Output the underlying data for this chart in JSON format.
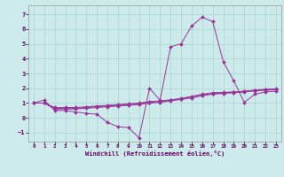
{
  "background_color": "#cceaea",
  "grid_color": "#aad4d4",
  "line_color": "#993399",
  "marker_color": "#993399",
  "xlabel": "Windchill (Refroidissement éolien,°C)",
  "xlim": [
    -0.5,
    23.5
  ],
  "ylim": [
    -1.6,
    7.6
  ],
  "yticks": [
    -1,
    0,
    1,
    2,
    3,
    4,
    5,
    6,
    7
  ],
  "xticks": [
    0,
    1,
    2,
    3,
    4,
    5,
    6,
    7,
    8,
    9,
    10,
    11,
    12,
    13,
    14,
    15,
    16,
    17,
    18,
    19,
    20,
    21,
    22,
    23
  ],
  "series1_x": [
    0,
    1,
    2,
    3,
    4,
    5,
    6,
    7,
    8,
    9,
    10,
    11,
    12,
    13,
    14,
    15,
    16,
    17,
    18,
    19,
    20,
    21,
    22,
    23
  ],
  "series1_y": [
    1.0,
    1.2,
    0.5,
    0.5,
    0.4,
    0.3,
    0.25,
    -0.3,
    -0.6,
    -0.65,
    -1.35,
    2.0,
    1.2,
    4.8,
    5.0,
    6.2,
    6.8,
    6.5,
    3.8,
    2.5,
    1.05,
    1.6,
    1.75,
    1.8
  ],
  "series2_x": [
    0,
    1,
    2,
    3,
    4,
    5,
    6,
    7,
    8,
    9,
    10,
    11,
    12,
    13,
    14,
    15,
    16,
    17,
    18,
    19,
    20,
    21,
    22,
    23
  ],
  "series2_y": [
    1.0,
    1.0,
    0.6,
    0.6,
    0.6,
    0.65,
    0.7,
    0.75,
    0.8,
    0.85,
    0.9,
    1.0,
    1.05,
    1.15,
    1.25,
    1.35,
    1.5,
    1.6,
    1.65,
    1.7,
    1.75,
    1.82,
    1.87,
    1.9
  ],
  "series3_x": [
    0,
    1,
    2,
    3,
    4,
    5,
    6,
    7,
    8,
    9,
    10,
    11,
    12,
    13,
    14,
    15,
    16,
    17,
    18,
    19,
    20,
    21,
    22,
    23
  ],
  "series3_y": [
    1.0,
    1.0,
    0.65,
    0.65,
    0.65,
    0.7,
    0.75,
    0.8,
    0.85,
    0.9,
    0.95,
    1.05,
    1.1,
    1.18,
    1.28,
    1.4,
    1.55,
    1.65,
    1.68,
    1.72,
    1.78,
    1.85,
    1.9,
    1.93
  ],
  "series4_x": [
    0,
    1,
    2,
    3,
    4,
    5,
    6,
    7,
    8,
    9,
    10,
    11,
    12,
    13,
    14,
    15,
    16,
    17,
    18,
    19,
    20,
    21,
    22,
    23
  ],
  "series4_y": [
    1.0,
    1.0,
    0.7,
    0.7,
    0.7,
    0.75,
    0.8,
    0.85,
    0.9,
    0.95,
    1.0,
    1.1,
    1.15,
    1.22,
    1.32,
    1.45,
    1.6,
    1.7,
    1.72,
    1.75,
    1.8,
    1.88,
    1.93,
    1.96
  ]
}
